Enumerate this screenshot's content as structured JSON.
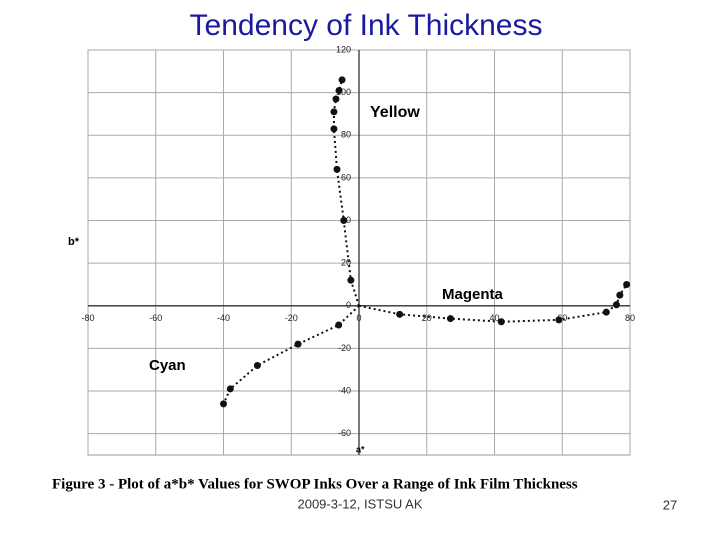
{
  "title": "Tendency of Ink Thickness",
  "chart_data": {
    "type": "scatter",
    "x_label": "a*",
    "y_label": "b*",
    "caption": "Figure 3 - Plot of a*b* Values for SWOP Inks Over a Range of Ink Film Thickness",
    "xlim": [
      -80,
      80
    ],
    "ylim": [
      -70,
      120
    ],
    "xticks": [
      -80,
      -60,
      -40,
      -20,
      0,
      20,
      40,
      60,
      80
    ],
    "yticks": [
      -60,
      -40,
      -20,
      0,
      20,
      40,
      60,
      80,
      100,
      120
    ],
    "grid": true,
    "series": [
      {
        "name": "Yellow",
        "color": "#111111",
        "x": [
          0,
          -2.4,
          -4.5,
          -6.5,
          -7.4,
          -7.4,
          -6.8,
          -5.9,
          -5
        ],
        "values": [
          0,
          12,
          40,
          64,
          83,
          91,
          97,
          101,
          106
        ]
      },
      {
        "name": "Magenta",
        "color": "#111111",
        "x": [
          0,
          12,
          27,
          42,
          59,
          73,
          76,
          77,
          79
        ],
        "values": [
          0,
          -4,
          -6,
          -7.5,
          -6.6,
          -3,
          0.5,
          5,
          10
        ]
      },
      {
        "name": "Cyan",
        "color": "#111111",
        "x": [
          0,
          -6,
          -18,
          -30,
          -38,
          -40
        ],
        "values": [
          0,
          -9,
          -18,
          -28,
          -39,
          -46
        ]
      }
    ]
  },
  "footer": {
    "date": "2009-3-12, ISTSU AK",
    "page": "27"
  }
}
